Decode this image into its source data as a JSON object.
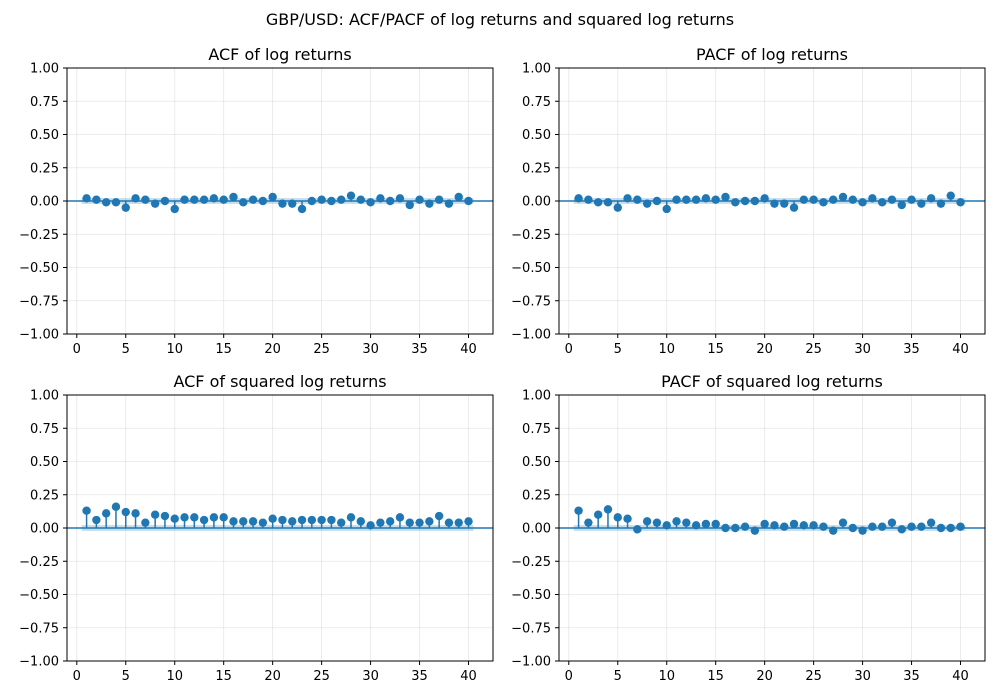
{
  "suptitle": "GBP/USD: ACF/PACF of log returns and squared log returns",
  "chart_data": [
    {
      "type": "stem",
      "title": "ACF of log returns",
      "xlim": [
        -1,
        42.5
      ],
      "ylim": [
        -1,
        1
      ],
      "xticks": [
        0,
        5,
        10,
        15,
        20,
        25,
        30,
        35,
        40
      ],
      "yticks": [
        1.0,
        0.75,
        0.5,
        0.25,
        0.0,
        -0.25,
        -0.5,
        -0.75,
        -1.0
      ],
      "grid": true,
      "confidence_band": 0.022,
      "x": [
        1,
        2,
        3,
        4,
        5,
        6,
        7,
        8,
        9,
        10,
        11,
        12,
        13,
        14,
        15,
        16,
        17,
        18,
        19,
        20,
        21,
        22,
        23,
        24,
        25,
        26,
        27,
        28,
        29,
        30,
        31,
        32,
        33,
        34,
        35,
        36,
        37,
        38,
        39,
        40
      ],
      "values": [
        0.02,
        0.01,
        -0.01,
        -0.01,
        -0.05,
        0.02,
        0.01,
        -0.02,
        0.0,
        -0.06,
        0.01,
        0.01,
        0.01,
        0.02,
        0.01,
        0.03,
        -0.01,
        0.01,
        0.0,
        0.03,
        -0.02,
        -0.02,
        -0.06,
        0.0,
        0.01,
        0.0,
        0.01,
        0.04,
        0.01,
        -0.01,
        0.02,
        0.0,
        0.02,
        -0.03,
        0.01,
        -0.02,
        0.01,
        -0.02,
        0.03,
        0.0
      ]
    },
    {
      "type": "stem",
      "title": "PACF of log returns",
      "xlim": [
        -1,
        42.5
      ],
      "ylim": [
        -1,
        1
      ],
      "xticks": [
        0,
        5,
        10,
        15,
        20,
        25,
        30,
        35,
        40
      ],
      "yticks": [
        1.0,
        0.75,
        0.5,
        0.25,
        0.0,
        -0.25,
        -0.5,
        -0.75,
        -1.0
      ],
      "grid": true,
      "confidence_band": 0.022,
      "x": [
        1,
        2,
        3,
        4,
        5,
        6,
        7,
        8,
        9,
        10,
        11,
        12,
        13,
        14,
        15,
        16,
        17,
        18,
        19,
        20,
        21,
        22,
        23,
        24,
        25,
        26,
        27,
        28,
        29,
        30,
        31,
        32,
        33,
        34,
        35,
        36,
        37,
        38,
        39,
        40
      ],
      "values": [
        0.02,
        0.01,
        -0.01,
        -0.01,
        -0.05,
        0.02,
        0.01,
        -0.02,
        0.0,
        -0.06,
        0.01,
        0.01,
        0.01,
        0.02,
        0.01,
        0.03,
        -0.01,
        0.0,
        0.0,
        0.02,
        -0.02,
        -0.02,
        -0.05,
        0.01,
        0.01,
        -0.01,
        0.01,
        0.03,
        0.01,
        -0.01,
        0.02,
        -0.01,
        0.01,
        -0.03,
        0.01,
        -0.02,
        0.02,
        -0.02,
        0.04,
        -0.01
      ]
    },
    {
      "type": "stem",
      "title": "ACF of squared log returns",
      "xlim": [
        -1,
        42.5
      ],
      "ylim": [
        -1,
        1
      ],
      "xticks": [
        0,
        5,
        10,
        15,
        20,
        25,
        30,
        35,
        40
      ],
      "yticks": [
        1.0,
        0.75,
        0.5,
        0.25,
        0.0,
        -0.25,
        -0.5,
        -0.75,
        -1.0
      ],
      "grid": true,
      "confidence_band": 0.022,
      "x": [
        1,
        2,
        3,
        4,
        5,
        6,
        7,
        8,
        9,
        10,
        11,
        12,
        13,
        14,
        15,
        16,
        17,
        18,
        19,
        20,
        21,
        22,
        23,
        24,
        25,
        26,
        27,
        28,
        29,
        30,
        31,
        32,
        33,
        34,
        35,
        36,
        37,
        38,
        39,
        40
      ],
      "values": [
        0.13,
        0.06,
        0.11,
        0.16,
        0.12,
        0.11,
        0.04,
        0.1,
        0.09,
        0.07,
        0.08,
        0.08,
        0.06,
        0.08,
        0.08,
        0.05,
        0.05,
        0.05,
        0.04,
        0.07,
        0.06,
        0.05,
        0.06,
        0.06,
        0.06,
        0.06,
        0.04,
        0.08,
        0.05,
        0.02,
        0.04,
        0.05,
        0.08,
        0.04,
        0.04,
        0.05,
        0.09,
        0.04,
        0.04,
        0.05
      ]
    },
    {
      "type": "stem",
      "title": "PACF of squared log returns",
      "xlim": [
        -1,
        42.5
      ],
      "ylim": [
        -1,
        1
      ],
      "xticks": [
        0,
        5,
        10,
        15,
        20,
        25,
        30,
        35,
        40
      ],
      "yticks": [
        1.0,
        0.75,
        0.5,
        0.25,
        0.0,
        -0.25,
        -0.5,
        -0.75,
        -1.0
      ],
      "grid": true,
      "confidence_band": 0.022,
      "x": [
        1,
        2,
        3,
        4,
        5,
        6,
        7,
        8,
        9,
        10,
        11,
        12,
        13,
        14,
        15,
        16,
        17,
        18,
        19,
        20,
        21,
        22,
        23,
        24,
        25,
        26,
        27,
        28,
        29,
        30,
        31,
        32,
        33,
        34,
        35,
        36,
        37,
        38,
        39,
        40
      ],
      "values": [
        0.13,
        0.04,
        0.1,
        0.14,
        0.08,
        0.07,
        -0.01,
        0.05,
        0.04,
        0.02,
        0.05,
        0.04,
        0.02,
        0.03,
        0.03,
        0.0,
        0.0,
        0.01,
        -0.02,
        0.03,
        0.02,
        0.01,
        0.03,
        0.02,
        0.02,
        0.01,
        -0.02,
        0.04,
        0.0,
        -0.02,
        0.01,
        0.01,
        0.04,
        -0.01,
        0.01,
        0.01,
        0.04,
        0.0,
        0.0,
        0.01
      ]
    }
  ]
}
